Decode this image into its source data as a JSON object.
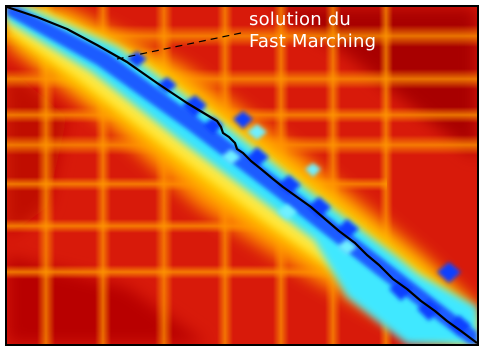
{
  "annotation": {
    "line1": "solution du",
    "line2": "Fast Marching"
  },
  "colors": {
    "background": "#ffffff",
    "frame": "#000000",
    "heat_hot": "#b00000",
    "heat_red": "#e83010",
    "heat_orange": "#ff8000",
    "heat_yellow": "#ffe020",
    "heat_cyan": "#30e0ff",
    "heat_blue": "#1050ff",
    "path": "#000000",
    "annotation_text": "#ffffff"
  }
}
